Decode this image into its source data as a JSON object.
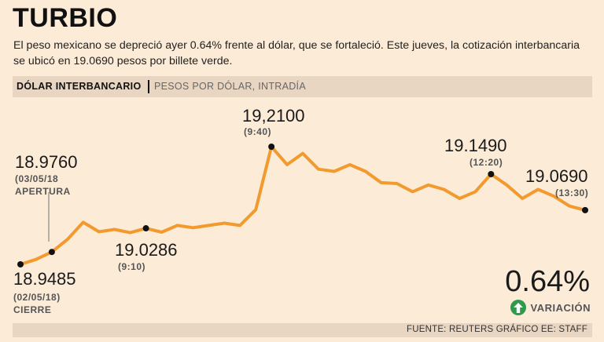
{
  "header": {
    "title": "TURBIO",
    "subtitle": "El peso mexicano se depreció ayer 0.64% frente al dólar, que se fortaleció. Este jueves, la cotización interbancaria se ubicó en 19.0690 pesos por billete verde."
  },
  "bar": {
    "label": "DÓLAR INTERBANCARIO",
    "sub": "PESOS POR DÓLAR, INTRADÍA"
  },
  "variation": {
    "value": "0.64%",
    "label": "VARIACIÓN"
  },
  "footer": {
    "source": "FUENTE: REUTERS GRÁFICO EE: STAFF"
  },
  "colors": {
    "line": "#f29a2e",
    "background": "#fcebd7",
    "up": "#2e9a4a"
  },
  "chart_data": {
    "type": "line",
    "title": "DÓLAR INTERBANCARIO",
    "ylabel": "PESOS POR DÓLAR, INTRADÍA",
    "series": [
      {
        "name": "Dólar interbancario",
        "values": [
          18.9485,
          18.9595,
          18.976,
          19.004,
          19.042,
          19.021,
          19.026,
          19.019,
          19.0286,
          19.02,
          19.035,
          19.03,
          19.035,
          19.04,
          19.035,
          19.07,
          19.21,
          19.17,
          19.195,
          19.16,
          19.155,
          19.17,
          19.155,
          19.13,
          19.128,
          19.11,
          19.125,
          19.115,
          19.095,
          19.11,
          19.149,
          19.125,
          19.095,
          19.115,
          19.1,
          19.078,
          19.069
        ]
      }
    ],
    "annotations": [
      {
        "index": 0,
        "value": "18.9485",
        "label1": "(02/05/18)",
        "label2": "CIERRE"
      },
      {
        "index": 2,
        "value": "18.9760",
        "label1": "(03/05/18",
        "label2": "APERTURA"
      },
      {
        "index": 8,
        "value": "19.0286",
        "label1": "(9:10)"
      },
      {
        "index": 16,
        "value": "19,2100",
        "label1": "(9:40)"
      },
      {
        "index": 30,
        "value": "19.1490",
        "label1": "(12:20)"
      },
      {
        "index": 36,
        "value": "19.0690",
        "label1": "(13:30)"
      }
    ]
  }
}
